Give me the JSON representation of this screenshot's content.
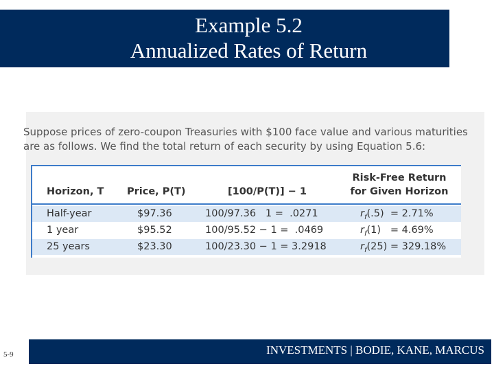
{
  "header": {
    "title_line1": "Example 5.2",
    "title_line2": "Annualized Rates of Return"
  },
  "intro": {
    "line1": "Suppose prices of zero-coupon Treasuries with $100 face value and various maturities",
    "line2": "are as follows. We find the total return of each security by using Equation 5.6:"
  },
  "table": {
    "headers": [
      "Horizon, T",
      "Price, P(T)",
      "[100/P(T)] − 1",
      "Risk-Free Return",
      "for Given Horizon"
    ],
    "rows": [
      [
        "Half-year",
        "$97.36",
        "100/97.36   1 =  .0271",
        "r",
        "f",
        "(.5)  = 2.71%"
      ],
      [
        "1 year",
        "$95.52",
        "100/95.52 − 1 =  .0469",
        "r",
        "f",
        "(1)   = 4.69%"
      ],
      [
        "25 years",
        "$23.30",
        "100/23.30 − 1 = 3.2918",
        "r",
        "f",
        "(25) = 329.18%"
      ]
    ]
  },
  "footer": {
    "slide_number": "5-9",
    "text": "INVESTMENTS | BODIE, KANE, MARCUS"
  }
}
